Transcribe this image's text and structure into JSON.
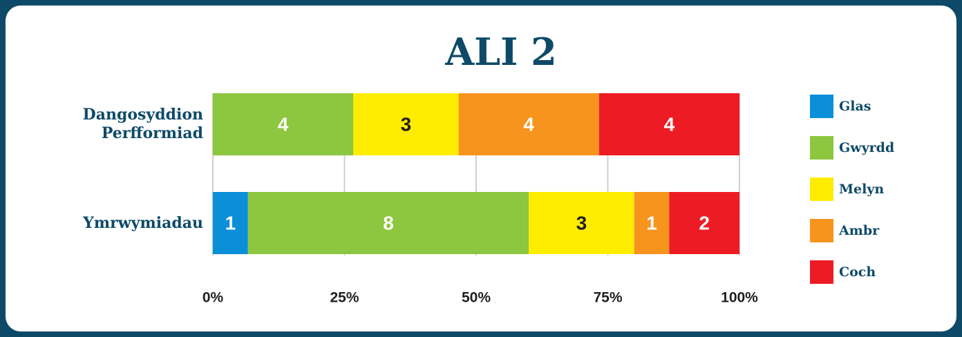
{
  "chart_data": {
    "type": "bar",
    "orientation": "horizontal",
    "stacking": "percent",
    "title": "ALI 2",
    "categories": [
      "Dangosyddion Perfformiad",
      "Ymrwymiadau"
    ],
    "series": [
      {
        "name": "Glas",
        "color": "#0a8fd8",
        "values": [
          null,
          1
        ]
      },
      {
        "name": "Gwyrdd",
        "color": "#8dc63f",
        "values": [
          4,
          8
        ]
      },
      {
        "name": "Melyn",
        "color": "#ffed00",
        "values": [
          3,
          3
        ]
      },
      {
        "name": "Ambr",
        "color": "#f7941d",
        "values": [
          4,
          1
        ]
      },
      {
        "name": "Coch",
        "color": "#ed1c24",
        "values": [
          4,
          2
        ]
      }
    ],
    "xlim": [
      0,
      100
    ],
    "xticks": [
      {
        "value": 0,
        "label": "0%"
      },
      {
        "value": 25,
        "label": "25%"
      },
      {
        "value": 50,
        "label": "50%"
      },
      {
        "value": 75,
        "label": "75%"
      },
      {
        "value": 100,
        "label": "100%"
      }
    ],
    "grid": true,
    "legend": "right"
  }
}
